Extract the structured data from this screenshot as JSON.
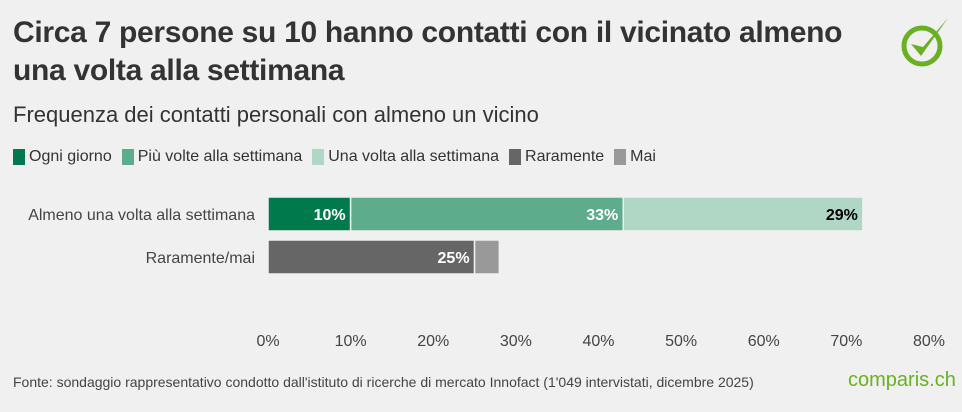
{
  "title": "Circa 7 persone su 10 hanno contatti con il vicinato almeno una volta alla settimana",
  "footer": "Fonte: sondaggio rappresentativo condotto dall'istituto di ricerche di mercato Innofact (1'049 intervistati, dicembre 2025)",
  "brand": "comparis.ch",
  "logo_icon": "check-circle-icon",
  "brand_color": "#6ab023",
  "chart_data": {
    "type": "bar",
    "orientation": "horizontal",
    "stacked": true,
    "title": "Frequenza dei contatti personali con almeno un vicino",
    "categories": [
      "Almeno una volta alla settimana",
      "Raramente/mai"
    ],
    "series": [
      {
        "name": "Ogni giorno",
        "color": "#007a4d",
        "values": [
          10,
          0
        ],
        "labels": [
          "10%",
          ""
        ],
        "label_color": "#ffffff"
      },
      {
        "name": "Più volte alla settimana",
        "color": "#5dac8c",
        "values": [
          33,
          0
        ],
        "labels": [
          "33%",
          ""
        ],
        "label_color": "#ffffff"
      },
      {
        "name": "Una volta alla settimana",
        "color": "#b0d6c6",
        "values": [
          29,
          0
        ],
        "labels": [
          "29%",
          ""
        ],
        "label_color": "#000000"
      },
      {
        "name": "Raramente",
        "color": "#666666",
        "values": [
          0,
          25
        ],
        "labels": [
          "",
          "25%"
        ],
        "label_color": "#ffffff"
      },
      {
        "name": "Mai",
        "color": "#999999",
        "values": [
          0,
          3
        ],
        "labels": [
          "",
          ""
        ],
        "label_color": "#ffffff"
      }
    ],
    "xlim": [
      0,
      80
    ],
    "xticks": [
      "0%",
      "10%",
      "20%",
      "30%",
      "40%",
      "50%",
      "60%",
      "70%",
      "80%"
    ],
    "grid": false,
    "legend": "top-left"
  }
}
